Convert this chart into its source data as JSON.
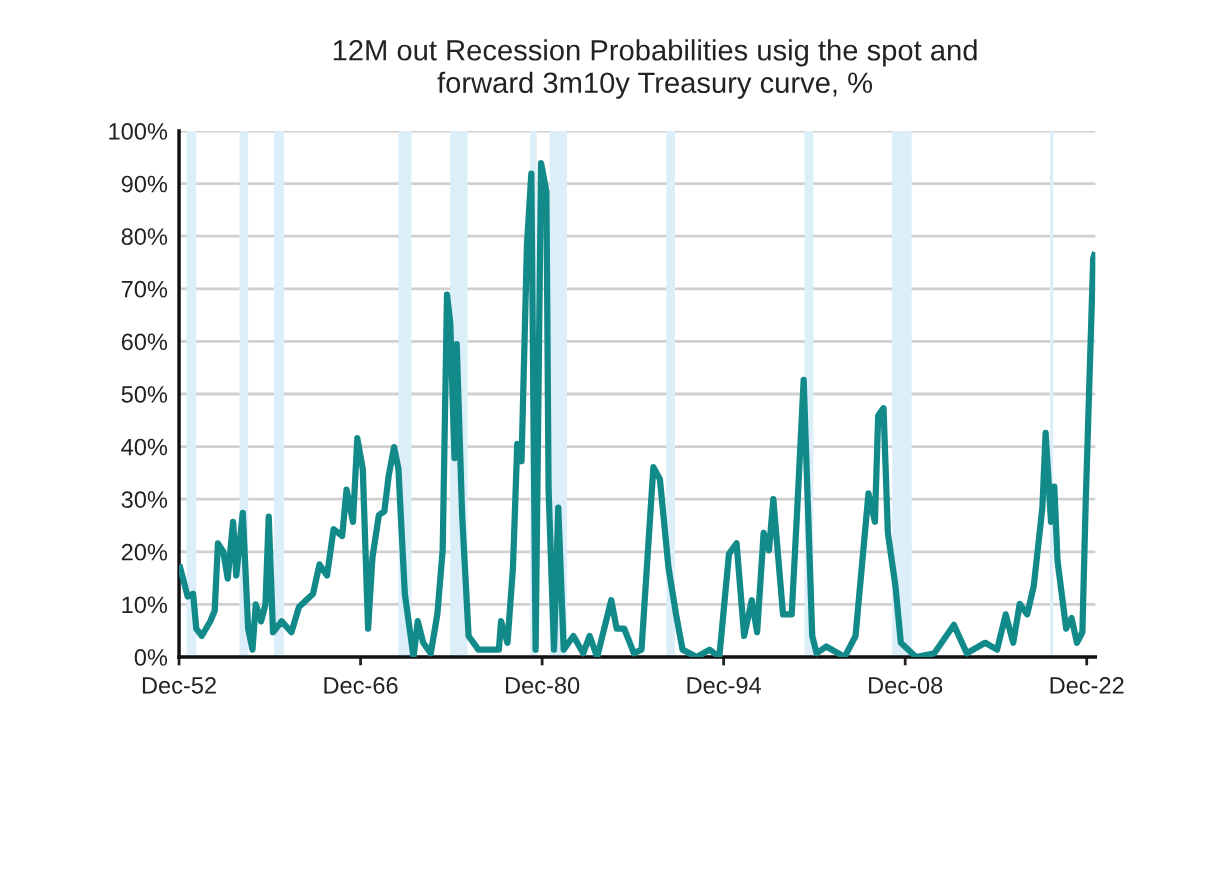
{
  "chart_data": {
    "type": "line",
    "title": "12M out Recession Probabilities usig the spot and\nforward 3m10y Treasury curve, %",
    "series": [
      {
        "color": "#138a8a",
        "x": [
          "1953-01",
          "1953-08",
          "1954-01",
          "1954-04",
          "1954-09",
          "1955-05",
          "1955-09",
          "1955-12",
          "1956-05",
          "1956-09",
          "1957-02",
          "1957-05",
          "1957-11",
          "1958-04",
          "1958-08",
          "1958-11",
          "1959-04",
          "1959-08",
          "1959-11",
          "1960-03",
          "1960-11",
          "1961-08",
          "1962-03",
          "1963-04",
          "1963-10",
          "1964-05",
          "1964-11",
          "1965-07",
          "1965-11",
          "1966-05",
          "1966-09",
          "1967-02",
          "1967-07",
          "1967-11",
          "1968-05",
          "1968-10",
          "1969-02",
          "1969-07",
          "1969-11",
          "1970-05",
          "1971-01",
          "1971-05",
          "1971-10",
          "1972-05",
          "1972-11",
          "1973-04",
          "1973-08",
          "1973-11",
          "1974-03",
          "1974-05",
          "1974-10",
          "1975-04",
          "1976-01",
          "1977-08",
          "1977-10",
          "1978-04",
          "1978-09",
          "1979-01",
          "1979-05",
          "1979-10",
          "1980-02",
          "1980-06",
          "1980-11",
          "1981-04",
          "1981-06",
          "1981-11",
          "1982-03",
          "1982-08",
          "1983-05",
          "1984-02",
          "1984-08",
          "1985-03",
          "1986-04",
          "1986-09",
          "1987-04",
          "1988-01",
          "1988-08",
          "1989-07",
          "1990-01",
          "1990-09",
          "1991-04",
          "1991-10",
          "1992-11",
          "1993-11",
          "1994-08",
          "1995-05",
          "1995-12",
          "1996-07",
          "1997-02",
          "1997-07",
          "1998-01",
          "1998-06",
          "1998-10",
          "1999-07",
          "2000-03",
          "2000-08",
          "2001-02",
          "2001-10",
          "2002-02",
          "2002-11",
          "2004-04",
          "2005-02",
          "2006-02",
          "2006-08",
          "2006-11",
          "2007-04",
          "2007-08",
          "2008-03",
          "2008-08",
          "2009-10",
          "2011-03",
          "2012-09",
          "2013-09",
          "2015-02",
          "2016-01",
          "2016-09",
          "2017-04",
          "2017-10",
          "2018-05",
          "2018-11",
          "2019-07",
          "2019-10",
          "2020-03",
          "2020-06",
          "2020-09",
          "2021-05",
          "2021-10",
          "2022-03",
          "2022-08",
          "2022-11",
          "2023-06",
          "2023-07"
        ],
        "values": [
          17,
          11.5,
          12,
          5.4,
          4,
          6.8,
          8.8,
          21.6,
          20,
          14.9,
          25.7,
          15.5,
          27.4,
          5.4,
          1.4,
          10,
          6.8,
          10,
          26.7,
          4.7,
          6.8,
          4.7,
          9.5,
          12,
          17.6,
          15.5,
          24.3,
          23,
          31.8,
          25.7,
          41.6,
          35.8,
          5.4,
          18.9,
          27,
          27.7,
          34.5,
          39.9,
          35.8,
          12,
          0,
          6.8,
          2.7,
          0.7,
          8.1,
          20.3,
          68.9,
          63.5,
          37.8,
          59.5,
          27,
          4,
          1.4,
          1.4,
          6.8,
          2.7,
          16.9,
          40.5,
          37.2,
          78.4,
          91.9,
          1.4,
          93.9,
          88.5,
          31.8,
          1.4,
          28.4,
          1.4,
          4,
          0.7,
          4,
          0,
          10.8,
          5.4,
          5.4,
          0.7,
          1.4,
          36.1,
          33.8,
          16.9,
          8.1,
          1.4,
          0,
          1.4,
          0,
          19.6,
          21.6,
          4,
          10.8,
          4.7,
          23.6,
          20.3,
          30,
          8.1,
          8.1,
          27.7,
          52.7,
          4,
          0.7,
          2,
          0,
          4,
          31.1,
          25.7,
          45.9,
          47.3,
          23.6,
          13.5,
          2.7,
          0,
          0.7,
          6.1,
          0.7,
          2.7,
          1.4,
          8.1,
          2.7,
          10.1,
          8.1,
          13.5,
          28.4,
          42.6,
          25.7,
          32.4,
          18.2,
          5.4,
          7.4,
          2.7,
          4.7,
          29,
          75.7,
          76.4
        ]
      }
    ],
    "xlim": [
      "1952-12",
      "2023-08"
    ],
    "xticks": [
      {
        "value": "1952-12",
        "label": "Dec-52"
      },
      {
        "value": "1966-12",
        "label": "Dec-66"
      },
      {
        "value": "1980-12",
        "label": "Dec-80"
      },
      {
        "value": "1994-12",
        "label": "Dec-94"
      },
      {
        "value": "2008-12",
        "label": "Dec-08"
      },
      {
        "value": "2022-12",
        "label": "Dec-22"
      }
    ],
    "ylim": [
      0,
      100
    ],
    "yticks": [
      {
        "value": 0,
        "label": "0%"
      },
      {
        "value": 10,
        "label": "10%"
      },
      {
        "value": 20,
        "label": "20%"
      },
      {
        "value": 30,
        "label": "30%"
      },
      {
        "value": 40,
        "label": "40%"
      },
      {
        "value": 50,
        "label": "50%"
      },
      {
        "value": 60,
        "label": "60%"
      },
      {
        "value": 70,
        "label": "70%"
      },
      {
        "value": 80,
        "label": "80%"
      },
      {
        "value": 90,
        "label": "90%"
      },
      {
        "value": 100,
        "label": "100%"
      }
    ],
    "bands": [
      {
        "axis": "x",
        "from": "1953-07",
        "to": "1954-04",
        "color": "#dbeef9"
      },
      {
        "axis": "x",
        "from": "1957-08",
        "to": "1958-04",
        "color": "#dbeef9"
      },
      {
        "axis": "x",
        "from": "1960-04",
        "to": "1961-01",
        "color": "#dbeef9"
      },
      {
        "axis": "x",
        "from": "1969-11",
        "to": "1970-11",
        "color": "#dbeef9"
      },
      {
        "axis": "x",
        "from": "1973-11",
        "to": "1975-03",
        "color": "#dbeef9"
      },
      {
        "axis": "x",
        "from": "1980-01",
        "to": "1980-07",
        "color": "#dbeef9"
      },
      {
        "axis": "x",
        "from": "1981-07",
        "to": "1982-11",
        "color": "#dbeef9"
      },
      {
        "axis": "x",
        "from": "1990-07",
        "to": "1991-03",
        "color": "#dbeef9"
      },
      {
        "axis": "x",
        "from": "2001-03",
        "to": "2001-11",
        "color": "#dbeef9"
      },
      {
        "axis": "x",
        "from": "2007-12",
        "to": "2009-06",
        "color": "#dbeef9"
      },
      {
        "axis": "x",
        "from": "2020-02",
        "to": "2020-05",
        "color": "#dbeef9"
      }
    ],
    "grid": "y",
    "legend": false,
    "marker": "none",
    "line_style": "solid"
  }
}
